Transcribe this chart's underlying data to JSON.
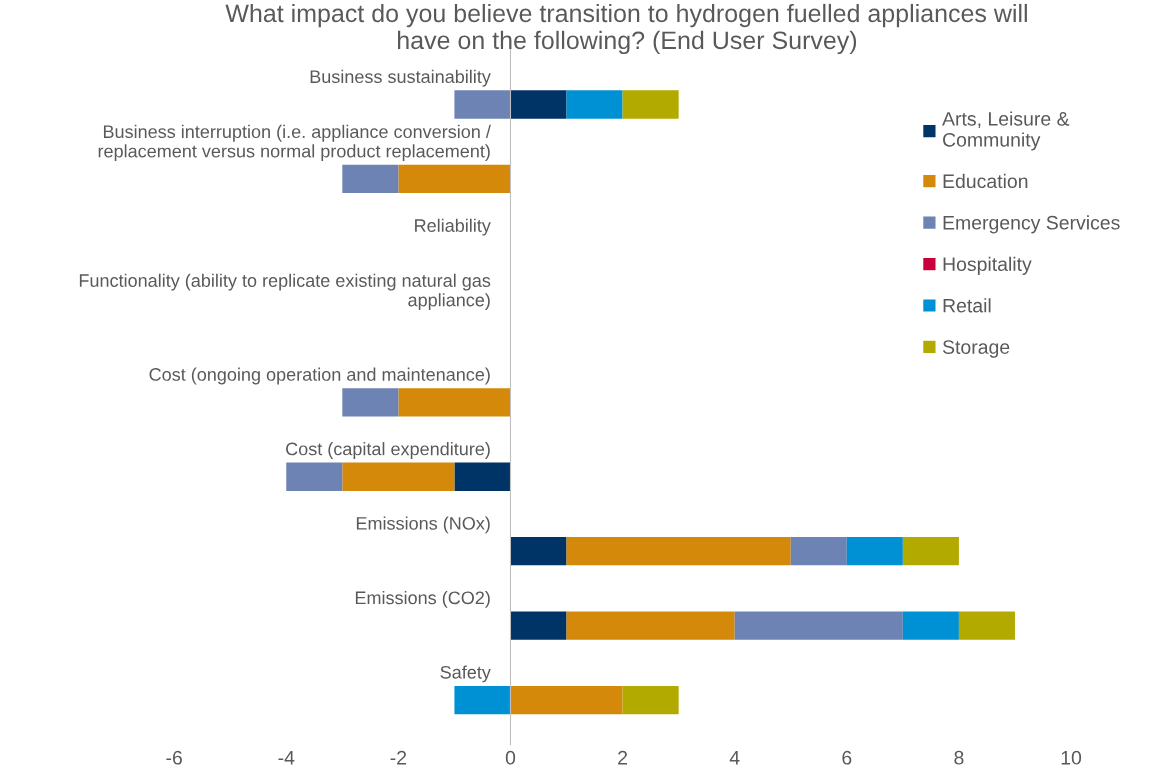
{
  "chart_data": {
    "type": "bar",
    "orientation": "horizontal",
    "stacked": true,
    "title": "What impact do you believe transition to hydrogen fuelled appliances will\nhave on the following? (End User Survey)",
    "categories": [
      "Business sustainability",
      "Business interruption (i.e. appliance conversion /\nreplacement versus normal product replacement)",
      "Reliability",
      "Functionality (ability to replicate existing natural gas\nappliance)",
      "Cost (ongoing operation and maintenance)",
      "Cost (capital expenditure)",
      "Emissions (NOx)",
      "Emissions (CO2)",
      "Safety"
    ],
    "series": [
      {
        "name": "Arts, Leisure &\nCommunity",
        "color": "#003366",
        "values": [
          1,
          null,
          null,
          null,
          null,
          -1,
          1,
          1,
          null
        ]
      },
      {
        "name": "Education",
        "color": "#d4890a",
        "values": [
          null,
          -2,
          null,
          null,
          -2,
          -2,
          4,
          3,
          2
        ]
      },
      {
        "name": "Emergency Services",
        "color": "#6d83b3",
        "values": [
          -1,
          -1,
          null,
          null,
          -1,
          -1,
          1,
          3,
          null
        ]
      },
      {
        "name": "Hospitality",
        "color": "#c8003c",
        "values": [
          null,
          null,
          null,
          null,
          null,
          null,
          null,
          null,
          null
        ]
      },
      {
        "name": "Retail",
        "color": "#0090d4",
        "values": [
          1,
          null,
          null,
          null,
          null,
          null,
          1,
          1,
          -1
        ]
      },
      {
        "name": "Storage",
        "color": "#b3aa00",
        "values": [
          1,
          null,
          null,
          null,
          null,
          null,
          1,
          1,
          1
        ]
      }
    ],
    "xlim": [
      -6,
      10
    ],
    "xticks": [
      -6,
      -4,
      -2,
      0,
      2,
      4,
      6,
      8,
      10
    ],
    "grid": false,
    "legend": "right"
  }
}
